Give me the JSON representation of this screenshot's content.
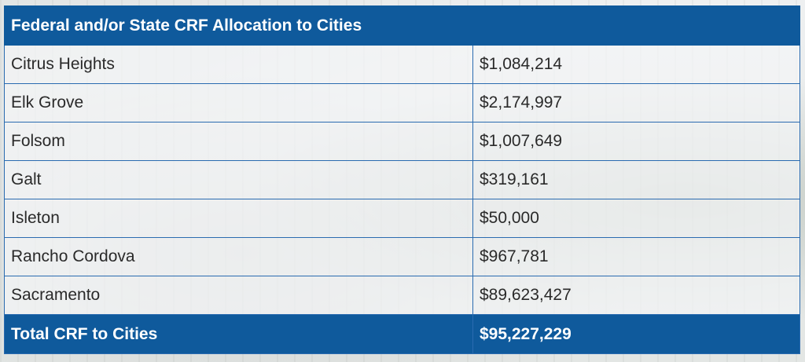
{
  "table": {
    "header": "Federal and/or State CRF Allocation to Cities",
    "rows": [
      {
        "city": "Citrus Heights",
        "amount": "$1,084,214"
      },
      {
        "city": "Elk Grove",
        "amount": "$2,174,997"
      },
      {
        "city": "Folsom",
        "amount": "$1,007,649"
      },
      {
        "city": "Galt",
        "amount": "$319,161"
      },
      {
        "city": "Isleton",
        "amount": "$50,000"
      },
      {
        "city": "Rancho Cordova",
        "amount": "$967,781"
      },
      {
        "city": "Sacramento",
        "amount": "$89,623,427"
      }
    ],
    "total": {
      "label": "Total CRF to Cities",
      "amount": "$95,227,229"
    }
  },
  "colors": {
    "header_bg": "#0f5a9c",
    "border": "#2a6bb0",
    "text": "#2a2a2a"
  }
}
